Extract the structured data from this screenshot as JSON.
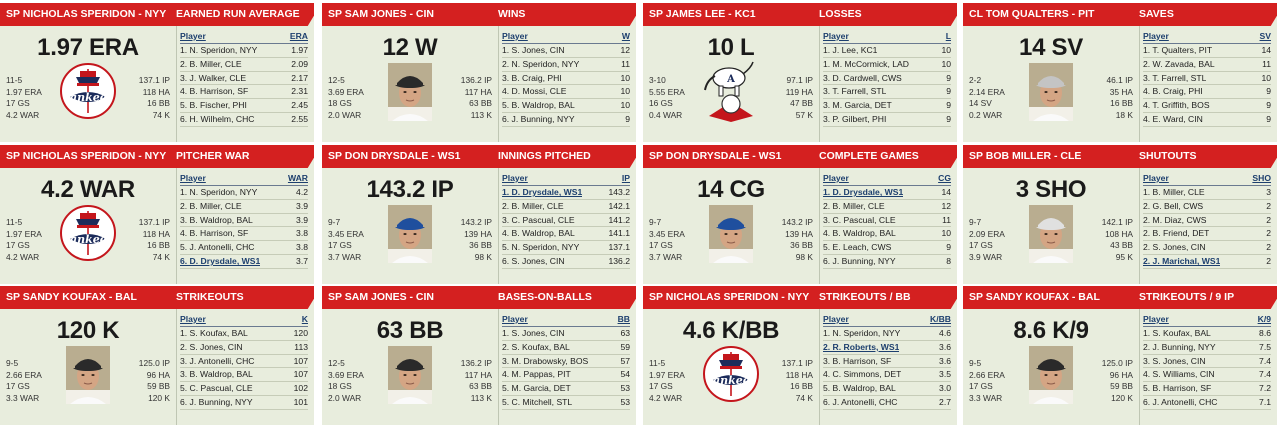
{
  "cards": [
    {
      "player": "SP NICHOLAS SPERIDON - NYY",
      "stat": "EARNED RUN AVERAGE",
      "big": "1.97 ERA",
      "col": "ERA",
      "logo": "yankees-logo",
      "rec": [
        "11-5",
        "1.97 ERA",
        "17 GS",
        "4.2 WAR"
      ],
      "rec2": [
        "137.1 IP",
        "118 HA",
        "16 BB",
        "74 K"
      ],
      "rows": [
        {
          "n": "1. N. Speridon, NYY",
          "v": "1.97"
        },
        {
          "n": "2. B. Miller, CLE",
          "v": "2.09"
        },
        {
          "n": "3. J. Walker, CLE",
          "v": "2.17"
        },
        {
          "n": "4. B. Harrison, SF",
          "v": "2.31"
        },
        {
          "n": "5. B. Fischer, PHI",
          "v": "2.45"
        },
        {
          "n": "6. H. Wilhelm, CHC",
          "v": "2.55"
        }
      ]
    },
    {
      "player": "SP SAM JONES - CIN",
      "stat": "WINS",
      "big": "12 W",
      "col": "W",
      "logo": "player-photo",
      "rec": [
        "12-5",
        "3.69 ERA",
        "18 GS",
        "2.0 WAR"
      ],
      "rec2": [
        "136.2 IP",
        "117 HA",
        "63 BB",
        "113 K"
      ],
      "rows": [
        {
          "n": "1. S. Jones, CIN",
          "v": "12"
        },
        {
          "n": "2. N. Speridon, NYY",
          "v": "11"
        },
        {
          "n": "3. B. Craig, PHI",
          "v": "10"
        },
        {
          "n": "4. D. Mossi, CLE",
          "v": "10"
        },
        {
          "n": "5. B. Waldrop, BAL",
          "v": "10"
        },
        {
          "n": "6. J. Bunning, NYY",
          "v": "9"
        }
      ]
    },
    {
      "player": "SP JAMES LEE - KC1",
      "stat": "LOSSES",
      "big": "10 L",
      "col": "L",
      "logo": "athletics-logo",
      "rec": [
        "3-10",
        "5.55 ERA",
        "16 GS",
        "0.4 WAR"
      ],
      "rec2": [
        "97.1 IP",
        "119 HA",
        "47 BB",
        "57 K"
      ],
      "rows": [
        {
          "n": "1. J. Lee, KC1",
          "v": "10"
        },
        {
          "n": "1. M. McCormick, LAD",
          "v": "10"
        },
        {
          "n": "3. D. Cardwell, CWS",
          "v": "9"
        },
        {
          "n": "3. T. Farrell, STL",
          "v": "9"
        },
        {
          "n": "3. M. Garcia, DET",
          "v": "9"
        },
        {
          "n": "3. P. Gilbert, PHI",
          "v": "9"
        }
      ]
    },
    {
      "player": "CL TOM QUALTERS - PIT",
      "stat": "SAVES",
      "big": "14 SV",
      "col": "SV",
      "logo": "player-photo",
      "rec": [
        "2-2",
        "2.14 ERA",
        "14 SV",
        "0.2 WAR"
      ],
      "rec2": [
        "46.1 IP",
        "35 HA",
        "16 BB",
        "18 K"
      ],
      "rows": [
        {
          "n": "1. T. Qualters, PIT",
          "v": "14"
        },
        {
          "n": "2. W. Zavada, BAL",
          "v": "11"
        },
        {
          "n": "3. T. Farrell, STL",
          "v": "10"
        },
        {
          "n": "4. B. Craig, PHI",
          "v": "9"
        },
        {
          "n": "4. T. Griffith, BOS",
          "v": "9"
        },
        {
          "n": "4. E. Ward, CIN",
          "v": "9"
        }
      ]
    },
    {
      "player": "SP NICHOLAS SPERIDON - NYY",
      "stat": "PITCHER WAR",
      "big": "4.2 WAR",
      "col": "WAR",
      "logo": "yankees-logo",
      "rec": [
        "11-5",
        "1.97 ERA",
        "17 GS",
        "4.2 WAR"
      ],
      "rec2": [
        "137.1 IP",
        "118 HA",
        "16 BB",
        "74 K"
      ],
      "rows": [
        {
          "n": "1. N. Speridon, NYY",
          "v": "4.2"
        },
        {
          "n": "2. B. Miller, CLE",
          "v": "3.9"
        },
        {
          "n": "3. B. Waldrop, BAL",
          "v": "3.9"
        },
        {
          "n": "4. B. Harrison, SF",
          "v": "3.8"
        },
        {
          "n": "5. J. Antonelli, CHC",
          "v": "3.8"
        },
        {
          "n": "6. D. Drysdale, WS1",
          "v": "3.7",
          "hl": true
        }
      ]
    },
    {
      "player": "SP DON DRYSDALE - WS1",
      "stat": "INNINGS PITCHED",
      "big": "143.2 IP",
      "col": "IP",
      "logo": "player-photo",
      "rec": [
        "9-7",
        "3.45 ERA",
        "17 GS",
        "3.7 WAR"
      ],
      "rec2": [
        "143.2 IP",
        "139 HA",
        "36 BB",
        "98 K"
      ],
      "rows": [
        {
          "n": "1. D. Drysdale, WS1",
          "v": "143.2",
          "hl": true
        },
        {
          "n": "2. B. Miller, CLE",
          "v": "142.1"
        },
        {
          "n": "3. C. Pascual, CLE",
          "v": "141.2"
        },
        {
          "n": "4. B. Waldrop, BAL",
          "v": "141.1"
        },
        {
          "n": "5. N. Speridon, NYY",
          "v": "137.1"
        },
        {
          "n": "6. S. Jones, CIN",
          "v": "136.2"
        }
      ]
    },
    {
      "player": "SP DON DRYSDALE - WS1",
      "stat": "COMPLETE GAMES",
      "big": "14 CG",
      "col": "CG",
      "logo": "player-photo",
      "rec": [
        "9-7",
        "3.45 ERA",
        "17 GS",
        "3.7 WAR"
      ],
      "rec2": [
        "143.2 IP",
        "139 HA",
        "36 BB",
        "98 K"
      ],
      "rows": [
        {
          "n": "1. D. Drysdale, WS1",
          "v": "14",
          "hl": true
        },
        {
          "n": "2. B. Miller, CLE",
          "v": "12"
        },
        {
          "n": "3. C. Pascual, CLE",
          "v": "11"
        },
        {
          "n": "4. B. Waldrop, BAL",
          "v": "10"
        },
        {
          "n": "5. E. Leach, CWS",
          "v": "9"
        },
        {
          "n": "6. J. Bunning, NYY",
          "v": "8"
        }
      ]
    },
    {
      "player": "SP BOB MILLER - CLE",
      "stat": "SHUTOUTS",
      "big": "3 SHO",
      "col": "SHO",
      "logo": "player-photo",
      "rec": [
        "9-7",
        "2.09 ERA",
        "17 GS",
        "3.9 WAR"
      ],
      "rec2": [
        "142.1 IP",
        "108 HA",
        "43 BB",
        "95 K"
      ],
      "rows": [
        {
          "n": "1. B. Miller, CLE",
          "v": "3"
        },
        {
          "n": "2. G. Bell, CWS",
          "v": "2"
        },
        {
          "n": "2. M. Diaz, CWS",
          "v": "2"
        },
        {
          "n": "2. B. Friend, DET",
          "v": "2"
        },
        {
          "n": "2. S. Jones, CIN",
          "v": "2"
        },
        {
          "n": "2. J. Marichal, WS1",
          "v": "2",
          "hl": true
        }
      ]
    },
    {
      "player": "SP SANDY KOUFAX - BAL",
      "stat": "STRIKEOUTS",
      "big": "120 K",
      "col": "K",
      "logo": "player-photo",
      "rec": [
        "9-5",
        "2.66 ERA",
        "17 GS",
        "3.3 WAR"
      ],
      "rec2": [
        "125.0 IP",
        "96 HA",
        "59 BB",
        "120 K"
      ],
      "rows": [
        {
          "n": "1. S. Koufax, BAL",
          "v": "120"
        },
        {
          "n": "2. S. Jones, CIN",
          "v": "113"
        },
        {
          "n": "3. J. Antonelli, CHC",
          "v": "107"
        },
        {
          "n": "3. B. Waldrop, BAL",
          "v": "107"
        },
        {
          "n": "5. C. Pascual, CLE",
          "v": "102"
        },
        {
          "n": "6. J. Bunning, NYY",
          "v": "101"
        }
      ]
    },
    {
      "player": "SP SAM JONES - CIN",
      "stat": "BASES-ON-BALLS",
      "big": "63 BB",
      "col": "BB",
      "logo": "player-photo",
      "rec": [
        "12-5",
        "3.69 ERA",
        "18 GS",
        "2.0 WAR"
      ],
      "rec2": [
        "136.2 IP",
        "117 HA",
        "63 BB",
        "113 K"
      ],
      "rows": [
        {
          "n": "1. S. Jones, CIN",
          "v": "63"
        },
        {
          "n": "2. S. Koufax, BAL",
          "v": "59"
        },
        {
          "n": "3. M. Drabowsky, BOS",
          "v": "57"
        },
        {
          "n": "4. M. Pappas, PIT",
          "v": "54"
        },
        {
          "n": "5. M. Garcia, DET",
          "v": "53"
        },
        {
          "n": "5. C. Mitchell, STL",
          "v": "53"
        }
      ]
    },
    {
      "player": "SP NICHOLAS SPERIDON - NYY",
      "stat": "STRIKEOUTS / BB",
      "big": "4.6 K/BB",
      "col": "K/BB",
      "logo": "yankees-logo",
      "rec": [
        "11-5",
        "1.97 ERA",
        "17 GS",
        "4.2 WAR"
      ],
      "rec2": [
        "137.1 IP",
        "118 HA",
        "16 BB",
        "74 K"
      ],
      "rows": [
        {
          "n": "1. N. Speridon, NYY",
          "v": "4.6"
        },
        {
          "n": "2. R. Roberts, WS1",
          "v": "3.6",
          "hl": true
        },
        {
          "n": "3. B. Harrison, SF",
          "v": "3.6"
        },
        {
          "n": "4. C. Simmons, DET",
          "v": "3.5"
        },
        {
          "n": "5. B. Waldrop, BAL",
          "v": "3.0"
        },
        {
          "n": "6. J. Antonelli, CHC",
          "v": "2.7"
        }
      ]
    },
    {
      "player": "SP SANDY KOUFAX - BAL",
      "stat": "STRIKEOUTS / 9 IP",
      "big": "8.6 K/9",
      "col": "K/9",
      "logo": "player-photo",
      "rec": [
        "9-5",
        "2.66 ERA",
        "17 GS",
        "3.3 WAR"
      ],
      "rec2": [
        "125.0 IP",
        "96 HA",
        "59 BB",
        "120 K"
      ],
      "rows": [
        {
          "n": "1. S. Koufax, BAL",
          "v": "8.6"
        },
        {
          "n": "2. J. Bunning, NYY",
          "v": "7.5"
        },
        {
          "n": "3. S. Jones, CIN",
          "v": "7.4"
        },
        {
          "n": "4. S. Williams, CIN",
          "v": "7.4"
        },
        {
          "n": "5. B. Harrison, SF",
          "v": "7.2"
        },
        {
          "n": "6. J. Antonelli, CHC",
          "v": "7.1"
        }
      ]
    }
  ],
  "player_col_label": "Player",
  "colors": {
    "header": "#d42020",
    "card": "#e8eddd",
    "link": "#1d3f6e"
  },
  "logo_text": {
    "yankees": "Yankees",
    "athletics": "A"
  },
  "photo_caps": {
    "1": "cin",
    "3": "pit",
    "5": "wsh",
    "6": "wsh",
    "7": "cle",
    "8": "bkn",
    "9": "cin",
    "11": "bkn"
  }
}
